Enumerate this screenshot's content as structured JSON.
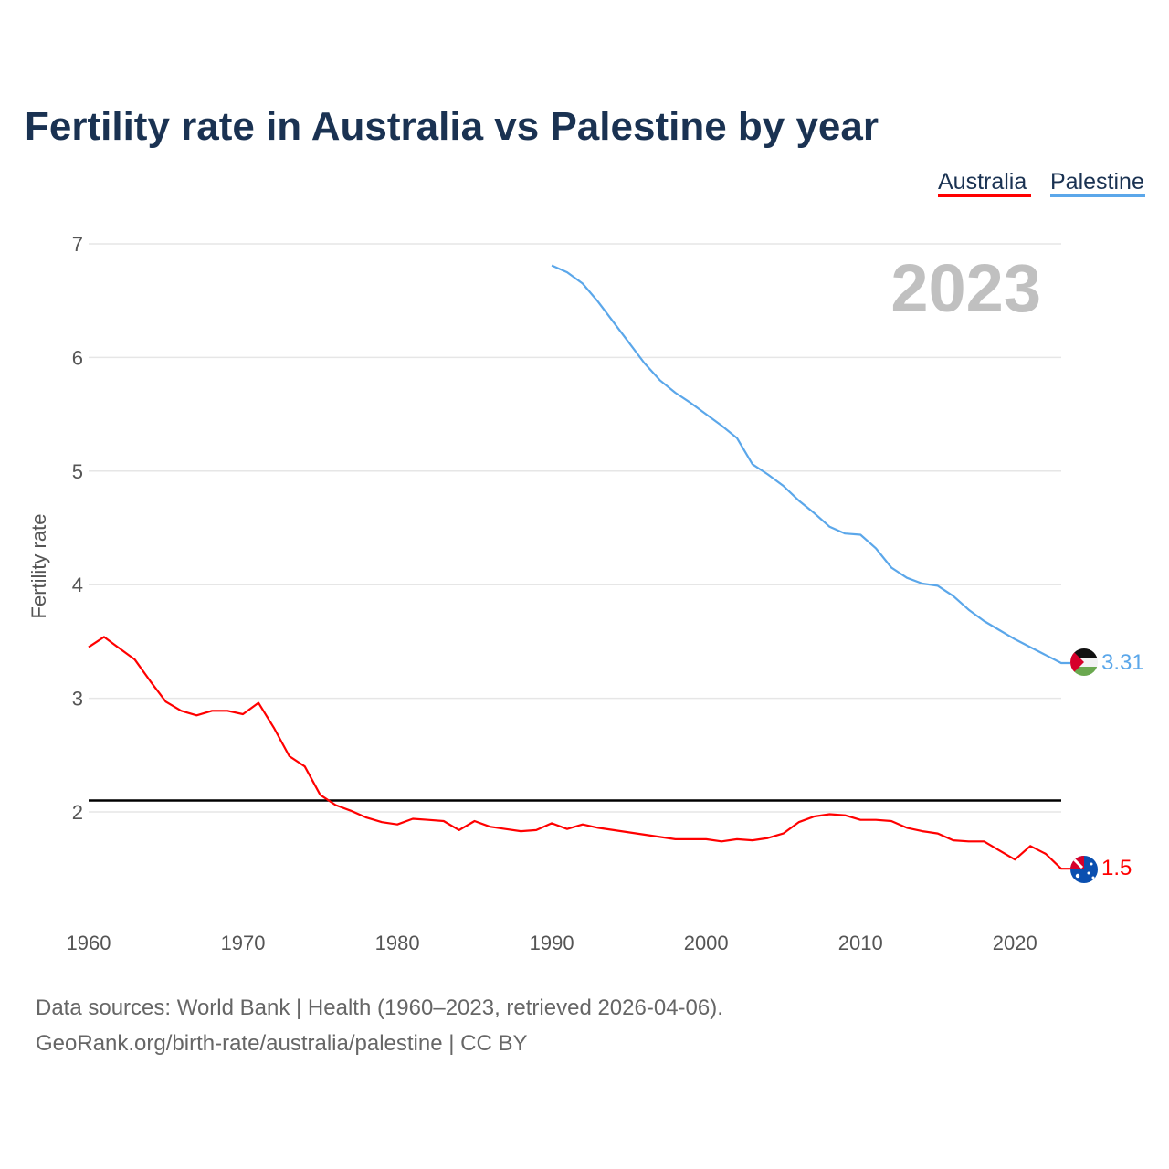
{
  "chart_data": {
    "type": "line",
    "title": "Fertility rate in Australia vs Palestine by year",
    "xlabel": "",
    "ylabel": "Fertility rate",
    "xlim": [
      1960,
      2023
    ],
    "ylim": [
      1,
      7
    ],
    "yticks": [
      "2",
      "3",
      "4",
      "5",
      "6",
      "7"
    ],
    "xticks": [
      "1960",
      "1970",
      "1980",
      "1990",
      "2000",
      "2010",
      "2020"
    ],
    "grid": true,
    "legend_position": "top-right",
    "current_year_label": "2023",
    "reference_line": 2.1,
    "series": [
      {
        "name": "Australia",
        "color": "#ff0000",
        "end_label": "1.5",
        "start_year": 1960,
        "values": [
          3.45,
          3.54,
          3.44,
          3.34,
          3.15,
          2.97,
          2.89,
          2.85,
          2.89,
          2.89,
          2.86,
          2.96,
          2.74,
          2.49,
          2.4,
          2.15,
          2.06,
          2.01,
          1.95,
          1.91,
          1.89,
          1.94,
          1.93,
          1.92,
          1.84,
          1.92,
          1.87,
          1.85,
          1.83,
          1.84,
          1.9,
          1.85,
          1.89,
          1.86,
          1.84,
          1.82,
          1.8,
          1.78,
          1.76,
          1.76,
          1.76,
          1.74,
          1.76,
          1.75,
          1.77,
          1.81,
          1.91,
          1.96,
          1.98,
          1.97,
          1.93,
          1.93,
          1.92,
          1.86,
          1.83,
          1.81,
          1.75,
          1.74,
          1.74,
          1.66,
          1.58,
          1.7,
          1.63,
          1.5
        ]
      },
      {
        "name": "Palestine",
        "color": "#5ba7ea",
        "end_label": "3.31",
        "start_year": 1990,
        "values": [
          6.81,
          6.75,
          6.65,
          6.49,
          6.31,
          6.13,
          5.95,
          5.8,
          5.69,
          5.6,
          5.5,
          5.4,
          5.29,
          5.06,
          4.97,
          4.87,
          4.74,
          4.63,
          4.51,
          4.45,
          4.44,
          4.32,
          4.15,
          4.06,
          4.01,
          3.99,
          3.9,
          3.78,
          3.68,
          3.6,
          3.52,
          3.45,
          3.38,
          3.31
        ]
      }
    ]
  },
  "source": {
    "line1": "Data sources: World Bank | Health (1960–2023, retrieved 2026-04-06).",
    "line2": "GeoRank.org/birth-rate/australia/palestine | CC BY"
  }
}
